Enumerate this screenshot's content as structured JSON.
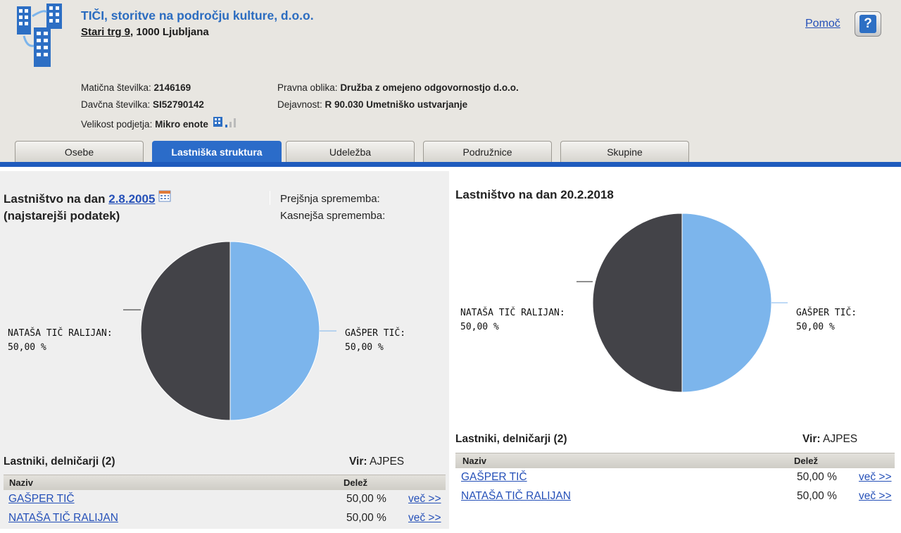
{
  "company": {
    "name": "TIČI, storitve na področju kulture, d.o.o.",
    "street": "Stari trg 9",
    "city": ", 1000 Ljubljana"
  },
  "help": {
    "label": "Pomoč",
    "icon": "?"
  },
  "info": {
    "maticna_label": "Matična številka: ",
    "maticna_value": "2146169",
    "davcna_label": "Davčna številka: ",
    "davcna_value": "SI52790142",
    "velikost_label": "Velikost podjetja: ",
    "velikost_value": "Mikro enote",
    "pravna_label": "Pravna oblika: ",
    "pravna_value": "Družba z omejeno odgovornostjo d.o.o.",
    "dejavnost_label": "Dejavnost: ",
    "dejavnost_value": "R 90.030 Umetniško ustvarjanje"
  },
  "tabs": [
    {
      "label": "Osebe",
      "active": false
    },
    {
      "label": "Lastniška struktura",
      "active": true
    },
    {
      "label": "Udeležba",
      "active": false
    },
    {
      "label": "Podružnice",
      "active": false
    },
    {
      "label": "Skupine",
      "active": false
    }
  ],
  "left": {
    "title_prefix": "Lastništvo na dan ",
    "date": "2.8.2005",
    "subtitle": "(najstarejši podatek)",
    "prev_change": "Prejšnja sprememba:",
    "next_change": "Kasnejša sprememba:",
    "owners_title": "Lastniki, delničarji (2)",
    "source_label": "Vir:",
    "source_value": "AJPES"
  },
  "right": {
    "title_prefix": "Lastništvo na dan ",
    "date": "20.2.2018",
    "owners_title": "Lastniki, delničarji (2)",
    "source_label": "Vir:",
    "source_value": "AJPES"
  },
  "table": {
    "col_name": "Naziv",
    "col_share": "Delež",
    "more_label": "več >>",
    "rows": [
      {
        "name": "GAŠPER TIČ",
        "share": "50,00 %"
      },
      {
        "name": "NATAŠA TIČ RALIJAN",
        "share": "50,00 %"
      }
    ]
  },
  "chart_data": [
    {
      "type": "pie",
      "categories": [
        "GAŠPER TIČ",
        "NATAŠA TIČ RALIJAN"
      ],
      "values": [
        50,
        50
      ],
      "labels": [
        {
          "name": "GAŠPER TIČ:",
          "value": "50,00 %"
        },
        {
          "name": "NATAŠA TIČ RALIJAN:",
          "value": "50,00 %"
        }
      ],
      "colors": [
        "#7cb5ec",
        "#434348"
      ]
    },
    {
      "type": "pie",
      "categories": [
        "GAŠPER TIČ",
        "NATAŠA TIČ RALIJAN"
      ],
      "values": [
        50,
        50
      ],
      "labels": [
        {
          "name": "GAŠPER TIČ:",
          "value": "50,00 %"
        },
        {
          "name": "NATAŠA TIČ RALIJAN:",
          "value": "50,00 %"
        }
      ],
      "colors": [
        "#7cb5ec",
        "#434348"
      ]
    }
  ]
}
